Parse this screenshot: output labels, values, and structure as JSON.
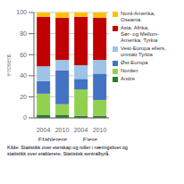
{
  "chart_data": {
    "type": "bar",
    "stacked": true,
    "categories": [
      "2004",
      "2010",
      "2004",
      "2010"
    ],
    "group_labels": [
      "Etablerere",
      "Eiere"
    ],
    "series": [
      {
        "name": "Andre",
        "color": "#2d7a2d",
        "values": [
          3,
          3,
          2,
          2
        ]
      },
      {
        "name": "Norden",
        "color": "#92d050",
        "values": [
          20,
          10,
          25,
          15
        ]
      },
      {
        "name": "Øst-Europa",
        "color": "#4472c4",
        "values": [
          12,
          32,
          10,
          25
        ]
      },
      {
        "name": "Vest-Europa ellers,\nunntatt Tyrkia",
        "color": "#9dc3e6",
        "values": [
          14,
          10,
          13,
          13
        ]
      },
      {
        "name": "Asia, Afrika,\nSør- og Mellom-\nAmerika, Tyrkia",
        "color": "#c00000",
        "values": [
          47,
          40,
          46,
          40
        ]
      },
      {
        "name": "Nord-Amerika,\nOseania",
        "color": "#ffc000",
        "values": [
          4,
          5,
          4,
          5
        ]
      }
    ],
    "y_label": "Prosent",
    "ylim": [
      0,
      100
    ],
    "yticks": [
      0,
      20,
      40,
      60,
      80,
      100
    ],
    "grid": true,
    "legend": "upper right",
    "source": "Kilde: Statistikk over eierskap og roller i næringslivet og\nstatistikk over etablerere, Statistisk sentralbyrå."
  }
}
